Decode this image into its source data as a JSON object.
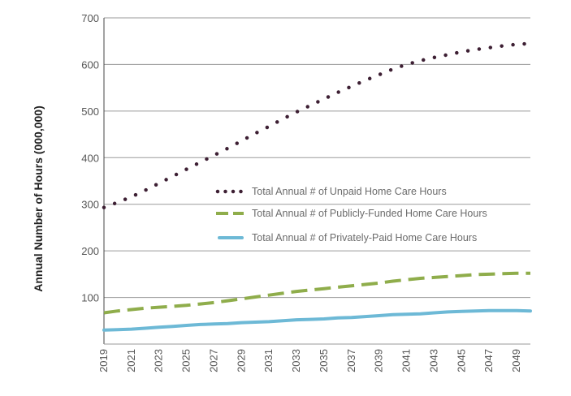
{
  "chart_data": {
    "type": "line",
    "title": "",
    "xlabel": "",
    "ylabel": "Annual Number of Hours (000,000)",
    "xlim": [
      2019,
      2050
    ],
    "ylim": [
      0,
      700
    ],
    "yticks": [
      100,
      200,
      300,
      400,
      500,
      600,
      700
    ],
    "xticks": [
      2019,
      2021,
      2023,
      2025,
      2027,
      2029,
      2031,
      2033,
      2035,
      2037,
      2039,
      2041,
      2043,
      2045,
      2047,
      2049
    ],
    "grid": "horizontal",
    "legend_position": "center-right",
    "x": [
      2019,
      2020,
      2021,
      2022,
      2023,
      2024,
      2025,
      2026,
      2027,
      2028,
      2029,
      2030,
      2031,
      2032,
      2033,
      2034,
      2035,
      2036,
      2037,
      2038,
      2039,
      2040,
      2041,
      2042,
      2043,
      2044,
      2045,
      2046,
      2047,
      2048,
      2049,
      2050
    ],
    "series": [
      {
        "name": "Total Annual # of Unpaid Home Care Hours",
        "style": "dotted",
        "color": "#3d1f33",
        "values": [
          293,
          304,
          316,
          330,
          345,
          360,
          375,
          390,
          405,
          420,
          436,
          452,
          467,
          483,
          498,
          512,
          526,
          540,
          553,
          566,
          578,
          590,
          600,
          608,
          615,
          621,
          627,
          632,
          636,
          640,
          643,
          645
        ]
      },
      {
        "name": "Total Annual # of Publicly-Funded Home Care Hours",
        "style": "dashed",
        "color": "#8fad4b",
        "values": [
          67,
          71,
          74,
          77,
          79,
          81,
          83,
          86,
          89,
          93,
          97,
          101,
          105,
          109,
          113,
          116,
          119,
          122,
          125,
          128,
          131,
          135,
          138,
          141,
          143,
          145,
          147,
          149,
          150,
          151,
          152,
          152
        ]
      },
      {
        "name": "Total Annual # of Privately-Paid Home Care Hours",
        "style": "solid",
        "color": "#6db9d6",
        "values": [
          30,
          31,
          32,
          34,
          36,
          38,
          40,
          42,
          43,
          44,
          46,
          47,
          48,
          50,
          52,
          53,
          54,
          56,
          57,
          59,
          61,
          63,
          64,
          65,
          67,
          69,
          70,
          71,
          72,
          72,
          72,
          71
        ]
      }
    ]
  }
}
